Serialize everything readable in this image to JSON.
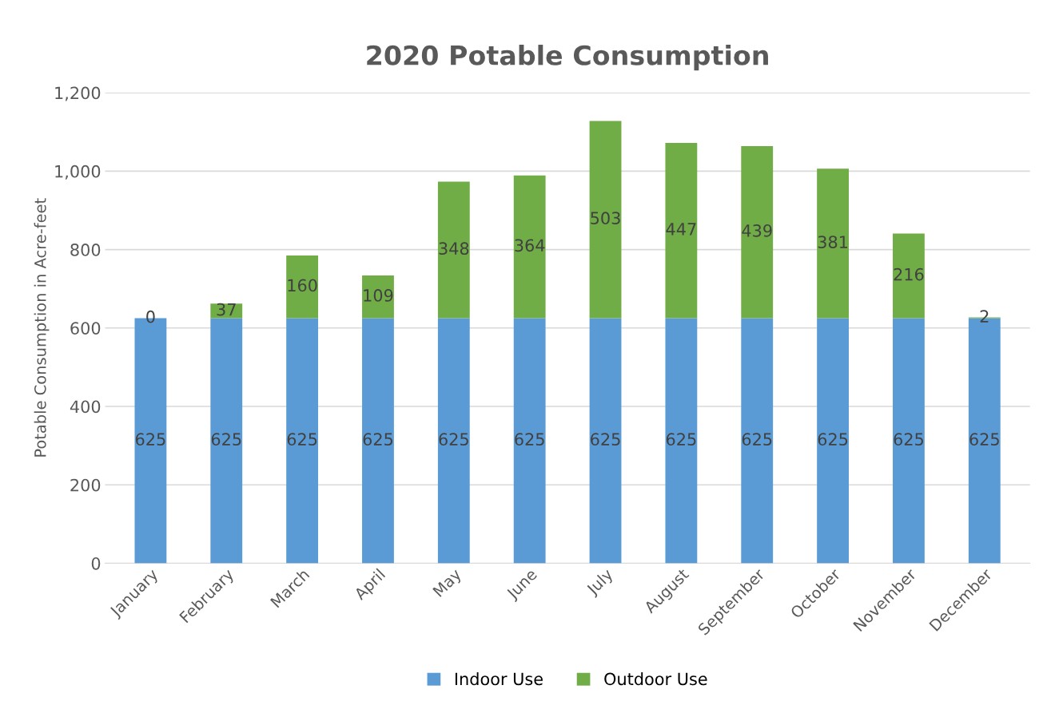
{
  "chart_data": {
    "type": "bar",
    "title": "2020 Potable Consumption",
    "ylabel": "Potable Consumption in Acre-feet",
    "categories": [
      "January",
      "February",
      "March",
      "April",
      "May",
      "June",
      "July",
      "August",
      "September",
      "October",
      "November",
      "December"
    ],
    "series": [
      {
        "name": "Indoor Use",
        "color": "#5b9bd5",
        "values": [
          625,
          625,
          625,
          625,
          625,
          625,
          625,
          625,
          625,
          625,
          625,
          625
        ]
      },
      {
        "name": "Outdoor Use",
        "color": "#70ad47",
        "values": [
          0,
          37,
          160,
          109,
          348,
          364,
          503,
          447,
          439,
          381,
          216,
          2
        ]
      }
    ],
    "stacked": true,
    "data_labels": true,
    "ylim": [
      0,
      1200
    ],
    "yticks": [
      0,
      200,
      400,
      600,
      800,
      {
        "value": 1000,
        "label": "1,000"
      },
      {
        "value": 1200,
        "label": "1,200"
      }
    ],
    "grid": "y",
    "legend": "bottom"
  }
}
